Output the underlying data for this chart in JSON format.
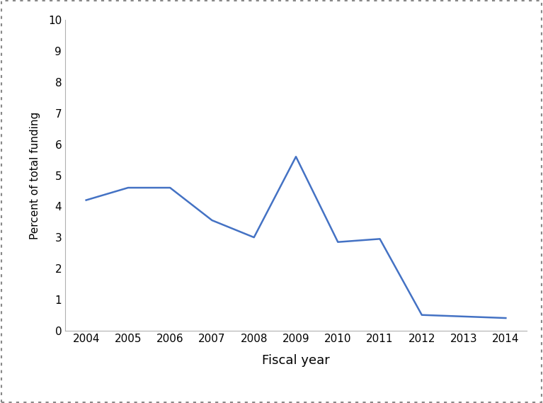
{
  "years": [
    2004,
    2005,
    2006,
    2007,
    2008,
    2009,
    2010,
    2011,
    2012,
    2013,
    2014
  ],
  "values": [
    4.2,
    4.6,
    4.6,
    3.55,
    3.0,
    5.6,
    2.85,
    2.95,
    0.5,
    0.45,
    0.4
  ],
  "line_color": "#4472C4",
  "line_width": 1.8,
  "xlabel": "Fiscal year",
  "ylabel": "Percent of total funding",
  "xlabel_fontsize": 13,
  "ylabel_fontsize": 11,
  "tick_fontsize": 11,
  "ylim": [
    0,
    10
  ],
  "yticks": [
    0,
    1,
    2,
    3,
    4,
    5,
    6,
    7,
    8,
    9,
    10
  ],
  "background_color": "#ffffff",
  "fig_bg": "#ffffff",
  "spine_color": "#b0b0b0"
}
